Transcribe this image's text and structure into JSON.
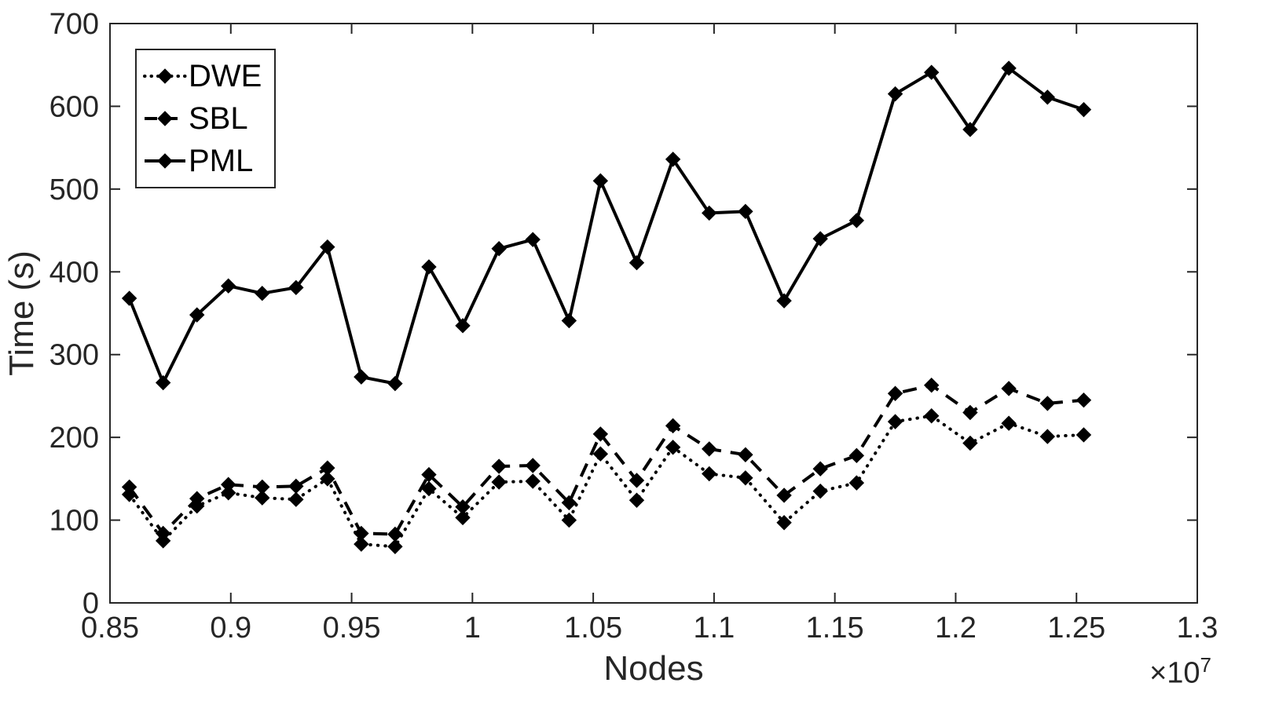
{
  "chart_data": {
    "type": "line",
    "title": "",
    "xlabel": "Nodes",
    "ylabel": "Time (s)",
    "x_offset_base": "×10",
    "x_offset_exp": "7",
    "xlim": [
      0.85,
      1.3
    ],
    "ylim": [
      0,
      700
    ],
    "xticks": [
      0.85,
      0.9,
      0.95,
      1.0,
      1.05,
      1.1,
      1.15,
      1.2,
      1.25,
      1.3
    ],
    "xtick_labels": [
      "0.85",
      "0.9",
      "0.95",
      "1",
      "1.05",
      "1.1",
      "1.15",
      "1.2",
      "1.25",
      "1.3"
    ],
    "yticks": [
      0,
      100,
      200,
      300,
      400,
      500,
      600,
      700
    ],
    "ytick_labels": [
      "0",
      "100",
      "200",
      "300",
      "400",
      "500",
      "600",
      "700"
    ],
    "grid": false,
    "legend_position": "top-left",
    "x": [
      0.858,
      0.872,
      0.886,
      0.899,
      0.913,
      0.927,
      0.94,
      0.954,
      0.968,
      0.982,
      0.996,
      1.011,
      1.025,
      1.04,
      1.053,
      1.068,
      1.083,
      1.098,
      1.113,
      1.129,
      1.144,
      1.159,
      1.175,
      1.19,
      1.206,
      1.222,
      1.238,
      1.253
    ],
    "series": [
      {
        "name": "DWE",
        "line_style": "dotted",
        "marker": "diamond",
        "color": "#000000",
        "values": [
          131,
          75,
          117,
          133,
          127,
          125,
          150,
          71,
          68,
          138,
          103,
          146,
          147,
          100,
          180,
          124,
          188,
          156,
          151,
          97,
          135,
          145,
          219,
          226,
          193,
          217,
          201,
          203
        ]
      },
      {
        "name": "SBL",
        "line_style": "dashed",
        "marker": "diamond",
        "color": "#000000",
        "values": [
          140,
          84,
          126,
          143,
          140,
          141,
          163,
          84,
          83,
          155,
          116,
          165,
          166,
          121,
          204,
          148,
          214,
          186,
          179,
          130,
          162,
          178,
          253,
          263,
          230,
          259,
          241,
          245
        ]
      },
      {
        "name": "PML",
        "line_style": "solid",
        "marker": "diamond",
        "color": "#000000",
        "values": [
          368,
          266,
          348,
          383,
          374,
          381,
          430,
          273,
          265,
          406,
          335,
          428,
          439,
          341,
          510,
          411,
          536,
          471,
          473,
          365,
          440,
          462,
          615,
          641,
          572,
          646,
          611,
          596
        ]
      }
    ],
    "axis_color": "#262626"
  }
}
